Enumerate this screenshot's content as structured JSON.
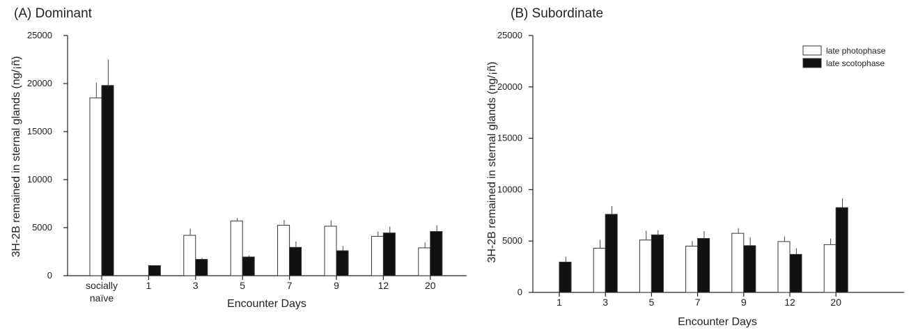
{
  "chart_data": [
    {
      "type": "bar",
      "title": "(A) Dominant",
      "ylabel": "3H-2B remained in sternal glands (ng/¡ñ)",
      "xlabel": "Encounter Days",
      "ylim": [
        0,
        25000
      ],
      "yticks": [
        0,
        5000,
        10000,
        15000,
        20000,
        25000
      ],
      "categories": [
        "socially\nnaïve",
        "1",
        "3",
        "5",
        "7",
        "9",
        "12",
        "20"
      ],
      "legend": false,
      "series": [
        {
          "name": "late photophase",
          "fill": "#ffffff",
          "values": [
            18500,
            null,
            4200,
            5700,
            5250,
            5150,
            4100,
            2900
          ],
          "errors": [
            1600,
            null,
            700,
            300,
            550,
            600,
            500,
            550
          ]
        },
        {
          "name": "late scotophase",
          "fill": "#111111",
          "values": [
            19800,
            1050,
            1700,
            1950,
            2950,
            2600,
            4450,
            4600
          ],
          "errors": [
            2700,
            0,
            150,
            150,
            600,
            500,
            650,
            650
          ]
        }
      ]
    },
    {
      "type": "bar",
      "title": "(B) Subordinate",
      "ylabel": "3H-2B remained in sternal glands (ng/¡ñ)",
      "xlabel": "Encounter Days",
      "ylim": [
        0,
        25000
      ],
      "yticks": [
        0,
        5000,
        10000,
        15000,
        20000,
        25000
      ],
      "categories": [
        "1",
        "3",
        "5",
        "7",
        "9",
        "12",
        "20"
      ],
      "legend": true,
      "legend_position": "top-right",
      "series": [
        {
          "name": "late photophase",
          "fill": "#ffffff",
          "values": [
            null,
            4300,
            5100,
            4500,
            5750,
            4950,
            4650
          ],
          "errors": [
            null,
            800,
            900,
            500,
            500,
            500,
            600
          ]
        },
        {
          "name": "late scotophase",
          "fill": "#111111",
          "values": [
            2950,
            7600,
            5600,
            5250,
            4550,
            3700,
            8250
          ],
          "errors": [
            500,
            800,
            450,
            700,
            800,
            600,
            900
          ]
        }
      ]
    }
  ]
}
